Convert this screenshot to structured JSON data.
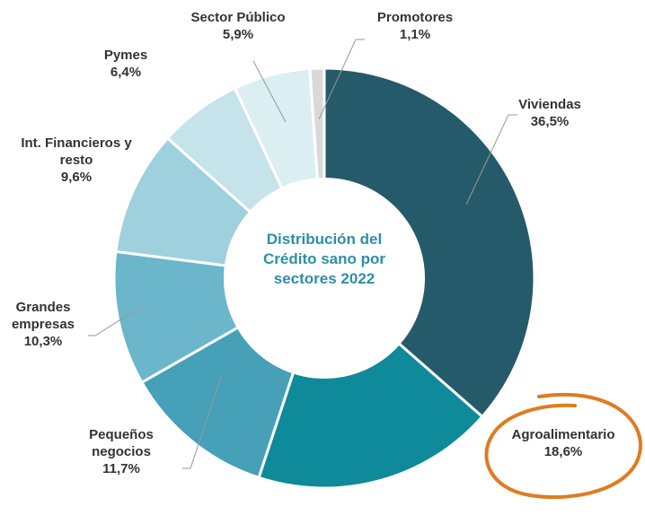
{
  "chart_data": {
    "type": "pie",
    "title": "Distribución del Crédito sano por sectores 2022",
    "categories": [
      "Viviendas",
      "Agroalimentario",
      "Pequeños negocios",
      "Grandes empresas",
      "Int. Financieros  y resto",
      "Pymes",
      "Sector Público",
      "Promotores"
    ],
    "values": [
      36.5,
      18.6,
      11.7,
      10.3,
      9.6,
      6.4,
      5.9,
      1.1
    ],
    "value_labels": [
      "36,5%",
      "18,6%",
      "11,7%",
      "10,3%",
      "9,6%",
      "6,4%",
      "5,9%",
      "1,1%"
    ],
    "colors": [
      "#255a6a",
      "#0e8a9a",
      "#45a0b8",
      "#6cb6cb",
      "#9fd0de",
      "#c4e3ea",
      "#dbeef2",
      "#d9d9d9"
    ]
  }
}
